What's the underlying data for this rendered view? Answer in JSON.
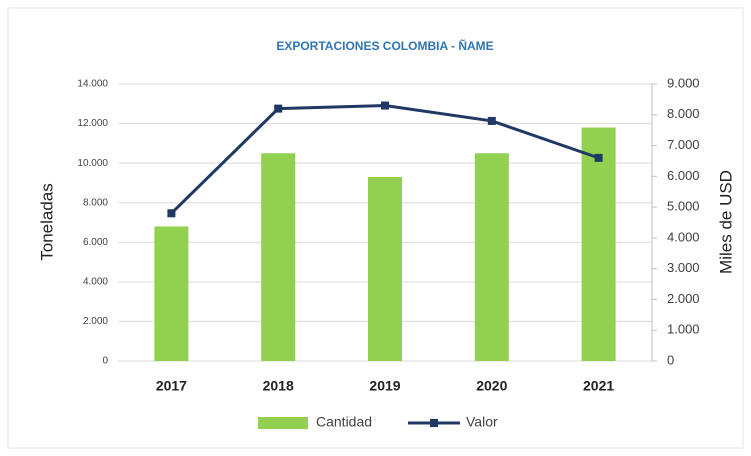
{
  "chart_data": {
    "type": "bar",
    "title": "EXPORTACIONES COLOMBIA - ÑAME",
    "y_label": "Toneladas",
    "y2_label": "Miles de USD",
    "categories": [
      "2017",
      "2018",
      "2019",
      "2020",
      "2021"
    ],
    "series": [
      {
        "name": "Cantidad",
        "type": "bar",
        "color": "#92d050",
        "values": [
          6800,
          10500,
          9300,
          10500,
          11800
        ]
      },
      {
        "name": "Valor",
        "type": "line",
        "axis": "y2",
        "color": "#203864",
        "values": [
          4800,
          8200,
          8300,
          7800,
          6600
        ]
      }
    ],
    "ylim": [
      0,
      14000
    ],
    "yticks": [
      0,
      {
        "value": 2000,
        "label": "2.000"
      },
      {
        "value": 4000,
        "label": "4.000"
      },
      {
        "value": 6000,
        "label": "6.000"
      },
      {
        "value": 8000,
        "label": "8.000"
      },
      {
        "value": 10000,
        "label": "10.000"
      },
      {
        "value": 12000,
        "label": "12.000"
      },
      {
        "value": 14000,
        "label": "14.000"
      }
    ],
    "y2lim": [
      0,
      9000
    ],
    "y2ticks": [
      0,
      {
        "value": 1000,
        "label": "1.000"
      },
      {
        "value": 2000,
        "label": "2.000"
      },
      {
        "value": 3000,
        "label": "3.000"
      },
      {
        "value": 4000,
        "label": "4.000"
      },
      {
        "value": 5000,
        "label": "5.000"
      },
      {
        "value": 6000,
        "label": "6.000"
      },
      {
        "value": 7000,
        "label": "7.000"
      },
      {
        "value": 8000,
        "label": "8.000"
      },
      {
        "value": 9000,
        "label": "9.000"
      }
    ],
    "grid": true,
    "legend": "bottom"
  }
}
